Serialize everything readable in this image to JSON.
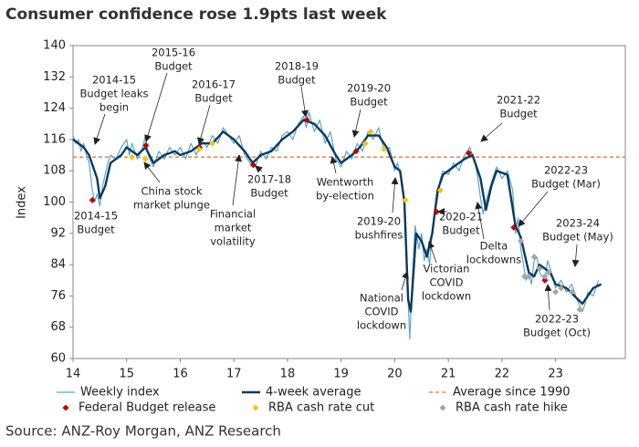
{
  "chart_data": {
    "type": "line",
    "title": "Consumer confidence rose 1.9pts last week",
    "ylabel": "Index",
    "source": "Source: ANZ-Roy Morgan, ANZ Research",
    "xlim": [
      14,
      24.3
    ],
    "xticks": [
      14,
      15,
      16,
      17,
      18,
      19,
      20,
      21,
      22,
      23
    ],
    "ylim": [
      60,
      140
    ],
    "yticks": [
      60,
      68,
      76,
      84,
      92,
      100,
      108,
      116,
      124,
      132,
      140
    ],
    "series": [
      {
        "name": "Weekly index",
        "color": "#5ba3d0",
        "x": [
          14.0,
          14.05,
          14.1,
          14.15,
          14.2,
          14.25,
          14.3,
          14.35,
          14.4,
          14.45,
          14.5,
          14.55,
          14.6,
          14.65,
          14.7,
          14.8,
          14.9,
          15.0,
          15.05,
          15.1,
          15.2,
          15.3,
          15.35,
          15.4,
          15.5,
          15.6,
          15.7,
          15.8,
          15.9,
          16.0,
          16.1,
          16.2,
          16.3,
          16.4,
          16.5,
          16.6,
          16.7,
          16.8,
          16.9,
          17.0,
          17.1,
          17.2,
          17.3,
          17.4,
          17.5,
          17.6,
          17.7,
          17.8,
          17.9,
          18.0,
          18.1,
          18.2,
          18.3,
          18.35,
          18.4,
          18.5,
          18.6,
          18.7,
          18.8,
          18.9,
          19.0,
          19.1,
          19.2,
          19.3,
          19.4,
          19.5,
          19.6,
          19.7,
          19.8,
          19.9,
          20.0,
          20.05,
          20.1,
          20.15,
          20.2,
          20.25,
          20.28,
          20.32,
          20.38,
          20.45,
          20.5,
          20.55,
          20.6,
          20.65,
          20.7,
          20.75,
          20.8,
          20.85,
          20.9,
          21.0,
          21.1,
          21.2,
          21.3,
          21.4,
          21.5,
          21.55,
          21.6,
          21.65,
          21.7,
          21.8,
          21.9,
          22.0,
          22.1,
          22.2,
          22.25,
          22.3,
          22.35,
          22.4,
          22.45,
          22.5,
          22.55,
          22.6,
          22.65,
          22.7,
          22.8,
          22.85,
          22.9,
          23.0,
          23.1,
          23.2,
          23.3,
          23.4,
          23.5,
          23.55,
          23.6,
          23.7,
          23.8
        ],
        "values": [
          117,
          115,
          116,
          113,
          115,
          112,
          110,
          104,
          100,
          102,
          99,
          104,
          107,
          110,
          112,
          111,
          114,
          116,
          112,
          115,
          111,
          114,
          117,
          112,
          109,
          113,
          111,
          114,
          112,
          114,
          111,
          115,
          112,
          116,
          114,
          117,
          115,
          119,
          117,
          115,
          117,
          112,
          110,
          109,
          113,
          111,
          114,
          113,
          117,
          118,
          116,
          120,
          122,
          119,
          123,
          118,
          121,
          115,
          118,
          111,
          109,
          113,
          111,
          115,
          113,
          118,
          116,
          119,
          113,
          114,
          108,
          110,
          107,
          104,
          96,
          75,
          65,
          78,
          94,
          88,
          92,
          85,
          88,
          84,
          93,
          97,
          101,
          106,
          108,
          107,
          110,
          108,
          112,
          114,
          110,
          106,
          101,
          97,
          100,
          105,
          109,
          106,
          108,
          103,
          92,
          96,
          88,
          84,
          80,
          82,
          79,
          85,
          86,
          82,
          80,
          85,
          83,
          78,
          80,
          77,
          79,
          75,
          72,
          74,
          77,
          76,
          80
        ]
      },
      {
        "name": "4-week average",
        "color": "#0b3a5e",
        "x": [
          14.0,
          14.2,
          14.3,
          14.45,
          14.5,
          14.6,
          14.7,
          14.9,
          15.0,
          15.2,
          15.35,
          15.5,
          15.7,
          15.9,
          16.0,
          16.2,
          16.4,
          16.6,
          16.8,
          17.0,
          17.2,
          17.35,
          17.5,
          17.7,
          17.9,
          18.1,
          18.3,
          18.5,
          18.7,
          18.9,
          19.0,
          19.2,
          19.35,
          19.5,
          19.7,
          19.85,
          20.0,
          20.1,
          20.18,
          20.25,
          20.3,
          20.4,
          20.5,
          20.6,
          20.7,
          20.8,
          20.9,
          21.1,
          21.3,
          21.45,
          21.6,
          21.7,
          21.8,
          21.9,
          22.1,
          22.25,
          22.35,
          22.5,
          22.6,
          22.7,
          22.9,
          23.0,
          23.2,
          23.35,
          23.5,
          23.7,
          23.85
        ],
        "values": [
          116,
          114,
          112,
          106,
          101,
          104,
          110,
          112,
          114,
          112,
          114,
          110,
          112,
          113,
          112,
          113,
          115,
          115,
          118,
          116,
          113,
          110,
          112,
          113,
          116,
          118,
          121,
          120,
          117,
          112,
          110,
          112,
          114,
          117,
          117,
          114,
          109,
          108,
          100,
          75,
          72,
          92,
          90,
          86,
          92,
          103,
          107,
          109,
          111,
          112,
          106,
          98,
          104,
          108,
          107,
          94,
          91,
          82,
          81,
          84,
          82,
          79,
          78,
          76,
          74,
          78,
          79
        ]
      }
    ],
    "reference_line": {
      "name": "Average since 1990",
      "value": 111.5,
      "color": "#e8743b"
    },
    "markers": [
      {
        "name": "Federal Budget release",
        "color": "#c00000",
        "x": [
          14.36,
          15.36,
          16.36,
          17.36,
          18.36,
          19.28,
          20.78,
          21.38,
          22.22,
          22.8
        ],
        "values": [
          100.5,
          114.5,
          114,
          109.5,
          121,
          113,
          97.5,
          112.5,
          93.5,
          80
        ]
      },
      {
        "name": "RBA cash rate cut",
        "color": "#f5c518",
        "x": [
          15.1,
          15.35,
          16.35,
          16.6,
          19.45,
          19.55,
          19.8,
          20.2,
          20.85
        ],
        "values": [
          111.5,
          111,
          113.5,
          115,
          115,
          118,
          113.5,
          100.5,
          103
        ]
      },
      {
        "name": "RBA cash rate hike",
        "color": "#a6a6a6",
        "x": [
          22.35,
          22.42,
          22.5,
          22.6,
          22.7,
          22.8,
          22.87,
          23.0,
          23.1,
          23.3,
          23.45
        ],
        "values": [
          90,
          81,
          81,
          86,
          83,
          81,
          82,
          77,
          78,
          77,
          72.5
        ]
      }
    ],
    "annotations": [
      [
        "2014-15",
        "Budget leaks",
        "begin"
      ],
      [
        "2014-15",
        "Budget"
      ],
      [
        "2015-16",
        "Budget"
      ],
      [
        "China stock",
        "market plunge"
      ],
      [
        "2016-17",
        "Budget"
      ],
      [
        "Financial",
        "market",
        "volatility"
      ],
      [
        "2017-18",
        "Budget"
      ],
      [
        "2018-19",
        "Budget"
      ],
      [
        "2019-20",
        "Budget"
      ],
      [
        "Wentworth",
        "by-election"
      ],
      [
        "2021-22",
        "Budget"
      ],
      [
        "2019-20",
        "bushfires"
      ],
      [
        "National",
        "COVID",
        "lockdown"
      ],
      [
        "Victorian",
        "COVID",
        "lockdown"
      ],
      [
        "2020-21",
        "Budget"
      ],
      [
        "Delta",
        "lockdowns"
      ],
      [
        "2022-23",
        "Budget (Mar)"
      ],
      [
        "2023-24",
        "Budget (May)"
      ],
      [
        "2022-23",
        "Budget (Oct)"
      ]
    ]
  }
}
